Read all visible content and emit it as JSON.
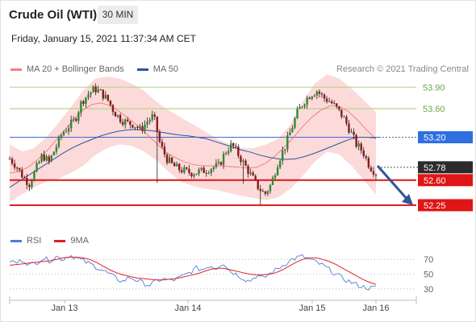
{
  "header": {
    "title": "Crude Oil (WTI)",
    "timeframe": "30 MIN",
    "datetime": "Friday, January 15, 2021 11:37:34 AM CET"
  },
  "legend": {
    "items": [
      {
        "label": "MA 20 + Bollinger Bands",
        "color": "#f08080"
      },
      {
        "label": "MA 50",
        "color": "#2f5597"
      }
    ],
    "credit": "Research © 2021 Trading Central"
  },
  "rsi_legend": {
    "items": [
      {
        "label": "RSI",
        "color": "#4a7fd6"
      },
      {
        "label": "9MA",
        "color": "#e02020"
      }
    ]
  },
  "chart_data": [
    {
      "type": "candlestick",
      "ylim": [
        52.08,
        54.05
      ],
      "x_labels": [
        "Jan 13",
        "Jan 14",
        "Jan 15",
        "Jan 16"
      ],
      "levels": [
        {
          "value": 53.9,
          "label": "53.90",
          "style": "green"
        },
        {
          "value": 53.6,
          "label": "53.60",
          "style": "green"
        },
        {
          "value": 53.2,
          "label": "53.20",
          "style": "blue-box"
        },
        {
          "value": 52.78,
          "label": "52.78",
          "style": "dark-box"
        },
        {
          "value": 52.6,
          "label": "52.60",
          "style": "red-box"
        },
        {
          "value": 52.25,
          "label": "52.25",
          "style": "red-box"
        }
      ],
      "close_path": [
        52.9,
        52.8,
        52.65,
        52.55,
        52.75,
        52.95,
        52.85,
        53.05,
        53.25,
        53.35,
        53.45,
        53.7,
        53.8,
        53.88,
        53.82,
        53.72,
        53.55,
        53.45,
        53.4,
        53.38,
        53.3,
        53.42,
        53.5,
        53.1,
        52.9,
        52.8,
        52.75,
        52.72,
        52.7,
        52.72,
        52.74,
        52.78,
        52.8,
        53.0,
        53.1,
        52.95,
        52.8,
        52.65,
        52.5,
        52.4,
        52.55,
        52.85,
        53.05,
        53.3,
        53.55,
        53.7,
        53.8,
        53.85,
        53.75,
        53.7,
        53.6,
        53.48,
        53.3,
        53.1,
        53.0,
        52.8,
        52.7
      ],
      "ma50": [
        52.5,
        52.58,
        52.66,
        52.74,
        52.82,
        52.9,
        52.98,
        53.05,
        53.11,
        53.16,
        53.21,
        53.25,
        53.28,
        53.3,
        53.31,
        53.3,
        53.29,
        53.27,
        53.25,
        53.23,
        53.22,
        53.2,
        53.18,
        53.14,
        53.1,
        53.06,
        53.02,
        52.99,
        52.95,
        52.92,
        52.9,
        52.89,
        52.9,
        52.93,
        52.97,
        53.02,
        53.07,
        53.12,
        53.17,
        53.2,
        53.2,
        53.19
      ],
      "ma20": [
        52.7,
        52.72,
        52.78,
        52.88,
        53.0,
        53.15,
        53.3,
        53.45,
        53.58,
        53.66,
        53.68,
        53.64,
        53.56,
        53.46,
        53.36,
        53.24,
        53.12,
        53.0,
        52.92,
        52.86,
        52.82,
        52.8,
        52.8,
        52.8,
        52.79,
        52.78,
        52.77,
        52.78,
        52.84,
        52.94,
        53.06,
        53.2,
        53.35,
        53.48,
        53.58,
        53.64,
        53.63,
        53.56,
        53.44,
        53.3,
        53.18
      ],
      "bb_upper": [
        53.1,
        53.0,
        53.05,
        53.2,
        53.4,
        53.62,
        53.85,
        54.02,
        54.05,
        54.02,
        53.95,
        53.85,
        53.7,
        53.58,
        53.48,
        53.38,
        53.28,
        53.18,
        53.1,
        53.05,
        53.05,
        53.1,
        53.18,
        53.38,
        53.7,
        53.95,
        54.08,
        54.02,
        53.88,
        53.72,
        53.55
      ],
      "bb_lower": [
        52.3,
        52.4,
        52.5,
        52.58,
        52.62,
        52.7,
        52.8,
        52.95,
        53.05,
        53.1,
        53.08,
        53.0,
        52.88,
        52.72,
        52.58,
        52.52,
        52.48,
        52.46,
        52.42,
        52.38,
        52.35,
        52.32,
        52.36,
        52.48,
        52.66,
        52.86,
        53.0,
        52.96,
        52.8,
        52.6,
        52.4
      ],
      "forecast_arrow": {
        "from": 52.8,
        "to": 52.25
      }
    },
    {
      "type": "line",
      "series": [
        {
          "name": "RSI",
          "values": [
            68,
            65,
            70,
            62,
            66,
            72,
            68,
            74,
            70,
            76,
            72,
            68,
            64,
            60,
            55,
            50,
            44,
            40,
            46,
            42,
            38,
            35,
            40,
            44,
            41,
            43,
            47,
            52,
            58,
            56,
            62,
            58,
            66,
            55,
            50,
            45,
            40,
            48,
            44,
            50,
            56,
            62,
            68,
            72,
            74,
            70,
            66,
            62,
            56,
            50,
            44,
            40,
            36,
            33,
            31,
            32
          ]
        },
        {
          "name": "9MA",
          "values": [
            62,
            63,
            64,
            65,
            66,
            67,
            68,
            70,
            72,
            73,
            73,
            72,
            70,
            66,
            61,
            56,
            52,
            49,
            47,
            45,
            44,
            43,
            42,
            42,
            43,
            44,
            46,
            48,
            50,
            53,
            56,
            58,
            58,
            56,
            54,
            52,
            50,
            49,
            49,
            50,
            52,
            56,
            61,
            66,
            70,
            72,
            72,
            70,
            67,
            63,
            58,
            53,
            48,
            43,
            39,
            36
          ]
        }
      ],
      "ylim": [
        20,
        80
      ],
      "levels": [
        70,
        50,
        30
      ],
      "level_labels": [
        "70",
        "50",
        "30"
      ]
    }
  ]
}
